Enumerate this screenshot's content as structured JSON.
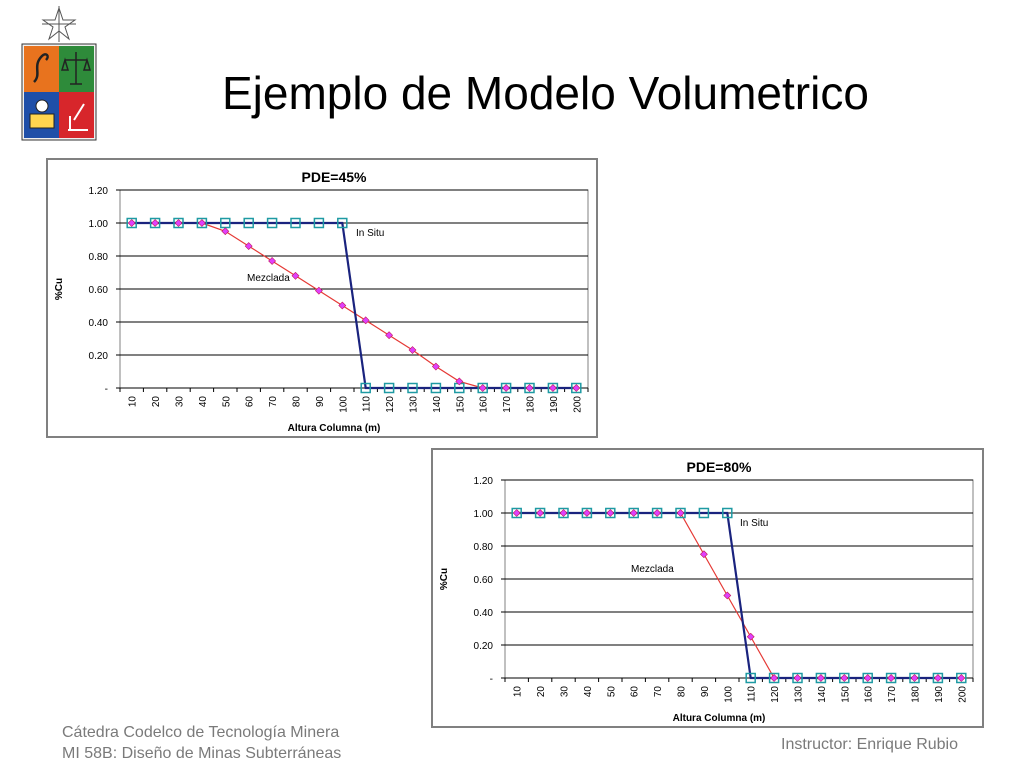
{
  "slide": {
    "title": "Ejemplo de Modelo Volumetrico",
    "footer_line1": "Cátedra Codelco de Tecnología Minera",
    "footer_line2": "MI 58B: Diseño de Minas Subterráneas",
    "instructor": "Instructor: Enrique Rubio"
  },
  "logo": {
    "icon": "university-crest-icon"
  },
  "chart_data": [
    {
      "type": "line",
      "title": "PDE=45%",
      "xlabel": "Altura Columna (m)",
      "ylabel": "%Cu",
      "categories": [
        "10",
        "20",
        "30",
        "40",
        "50",
        "60",
        "70",
        "80",
        "90",
        "100",
        "110",
        "120",
        "130",
        "140",
        "150",
        "160",
        "170",
        "180",
        "190",
        "200"
      ],
      "ylim": [
        0,
        1.2
      ],
      "yticks": [
        "-",
        "0.20",
        "0.40",
        "0.60",
        "0.80",
        "1.00",
        "1.20"
      ],
      "grid": true,
      "series": [
        {
          "name": "In Situ",
          "color": "#1a237e",
          "marker": "square-open-teal",
          "values": [
            1,
            1,
            1,
            1,
            1,
            1,
            1,
            1,
            1,
            1,
            0,
            0,
            0,
            0,
            0,
            0,
            0,
            0,
            0,
            0
          ]
        },
        {
          "name": "Mezclada",
          "color": "#e53935",
          "marker": "diamond-magenta",
          "values": [
            1,
            1,
            1,
            1,
            0.95,
            0.86,
            0.77,
            0.68,
            0.59,
            0.5,
            0.41,
            0.32,
            0.23,
            0.13,
            0.04,
            0,
            0,
            0,
            0,
            0
          ]
        }
      ]
    },
    {
      "type": "line",
      "title": "PDE=80%",
      "xlabel": "Altura Columna (m)",
      "ylabel": "%Cu",
      "categories": [
        "10",
        "20",
        "30",
        "40",
        "50",
        "60",
        "70",
        "80",
        "90",
        "100",
        "110",
        "120",
        "130",
        "140",
        "150",
        "160",
        "170",
        "180",
        "190",
        "200"
      ],
      "ylim": [
        0,
        1.2
      ],
      "yticks": [
        "-",
        "0.20",
        "0.40",
        "0.60",
        "0.80",
        "1.00",
        "1.20"
      ],
      "grid": true,
      "series": [
        {
          "name": "In Situ",
          "color": "#1a237e",
          "marker": "square-open-teal",
          "values": [
            1,
            1,
            1,
            1,
            1,
            1,
            1,
            1,
            1,
            1,
            0,
            0,
            0,
            0,
            0,
            0,
            0,
            0,
            0,
            0
          ]
        },
        {
          "name": "Mezclada",
          "color": "#e53935",
          "marker": "diamond-magenta",
          "values": [
            1,
            1,
            1,
            1,
            1,
            1,
            1,
            1,
            0.75,
            0.5,
            0.25,
            0,
            0,
            0,
            0,
            0,
            0,
            0,
            0,
            0
          ]
        }
      ]
    }
  ]
}
